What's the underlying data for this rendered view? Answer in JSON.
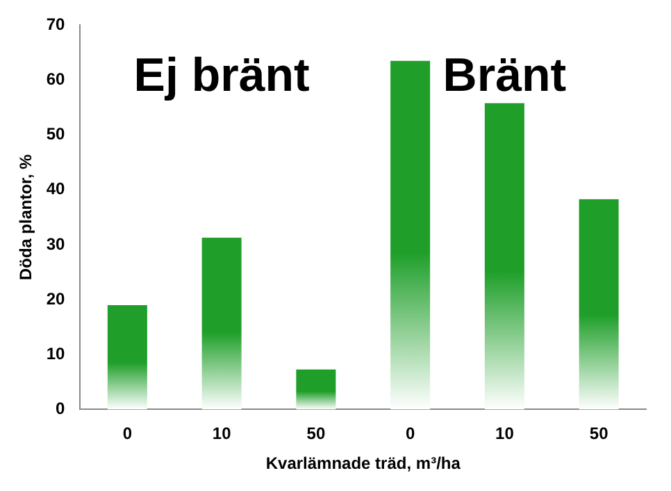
{
  "chart_data": {
    "type": "bar",
    "xlabel": "Kvarlämnade träd, m³/ha",
    "ylabel": "Döda plantor, %",
    "categories": [
      "0",
      "10",
      "50",
      "0",
      "10",
      "50"
    ],
    "values": [
      19,
      31.3,
      7.3,
      63.5,
      55.8,
      38.3
    ],
    "color": "#1f9f2a",
    "ylim": [
      0,
      70
    ],
    "yticks": [
      0,
      10,
      20,
      30,
      40,
      50,
      60,
      70
    ],
    "grid": false,
    "annotations": [
      "Ej bränt",
      "Bränt"
    ]
  }
}
